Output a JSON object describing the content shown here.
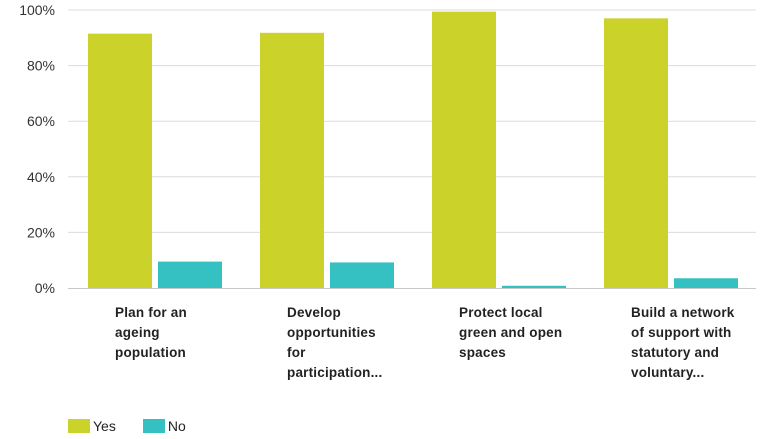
{
  "chart_data": {
    "type": "bar",
    "categories": [
      "Plan for an ageing population",
      "Develop opportunities for participation...",
      "Protect local green and open spaces",
      "Build a network of support with statutory and voluntary..."
    ],
    "category_lines": [
      [
        "Plan for an",
        "ageing",
        "population"
      ],
      [
        "Develop",
        "opportunities",
        "for",
        "participation..."
      ],
      [
        "Protect local",
        "green and open",
        "spaces"
      ],
      [
        "Build a network",
        "of support with",
        "statutory and",
        "voluntary..."
      ]
    ],
    "series": [
      {
        "name": "Yes",
        "color": "#cbd32a",
        "values": [
          91.5,
          91.8,
          99.4,
          97.0
        ]
      },
      {
        "name": "No",
        "color": "#35c1c1",
        "values": [
          9.5,
          9.2,
          0.8,
          3.5
        ]
      }
    ],
    "y_ticks": [
      "0%",
      "20%",
      "40%",
      "60%",
      "80%",
      "100%"
    ],
    "ylim": [
      0,
      100
    ],
    "grid": true,
    "legend_position": "bottom-left"
  },
  "legend": {
    "yes_label": "Yes",
    "no_label": "No"
  }
}
